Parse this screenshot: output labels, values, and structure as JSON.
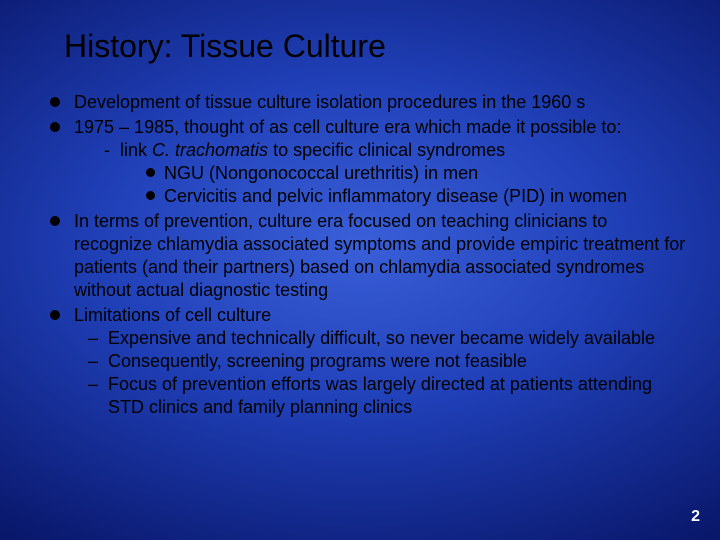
{
  "background": {
    "type": "radial-gradient",
    "center_color": "#3a5fd8",
    "mid_color": "#0a1a70",
    "edge_color": "#020530"
  },
  "text_color": "#000000",
  "pagenum_color": "#ffffff",
  "title_fontsize": 32,
  "body_fontsize": 18,
  "font_family": "Arial",
  "title": "History: Tissue Culture",
  "bullets": {
    "b1": "Development of tissue culture isolation procedures in the 1960 s",
    "b2": "1975 – 1985, thought of as cell culture era which made it possible to:",
    "b2_sub1_pre": "link ",
    "b2_sub1_italic": "C. trachomatis",
    "b2_sub1_post": " to specific clinical syndromes",
    "b2_sub1_a": "NGU (Nongonococcal urethritis) in men",
    "b2_sub1_b": "Cervicitis and pelvic inflammatory disease (PID) in women",
    "b3": "In terms of prevention, culture era focused on teaching clinicians to recognize chlamydia associated symptoms and provide empiric treatment for patients (and their partners) based on chlamydia associated syndromes without actual diagnostic testing",
    "b4": "Limitations of cell culture",
    "b4_a": "Expensive and technically difficult, so never became widely available",
    "b4_b": "Consequently, screening programs were not feasible",
    "b4_c": "Focus of prevention efforts was largely directed at patients attending STD clinics and family planning clinics"
  },
  "page_number": "2"
}
